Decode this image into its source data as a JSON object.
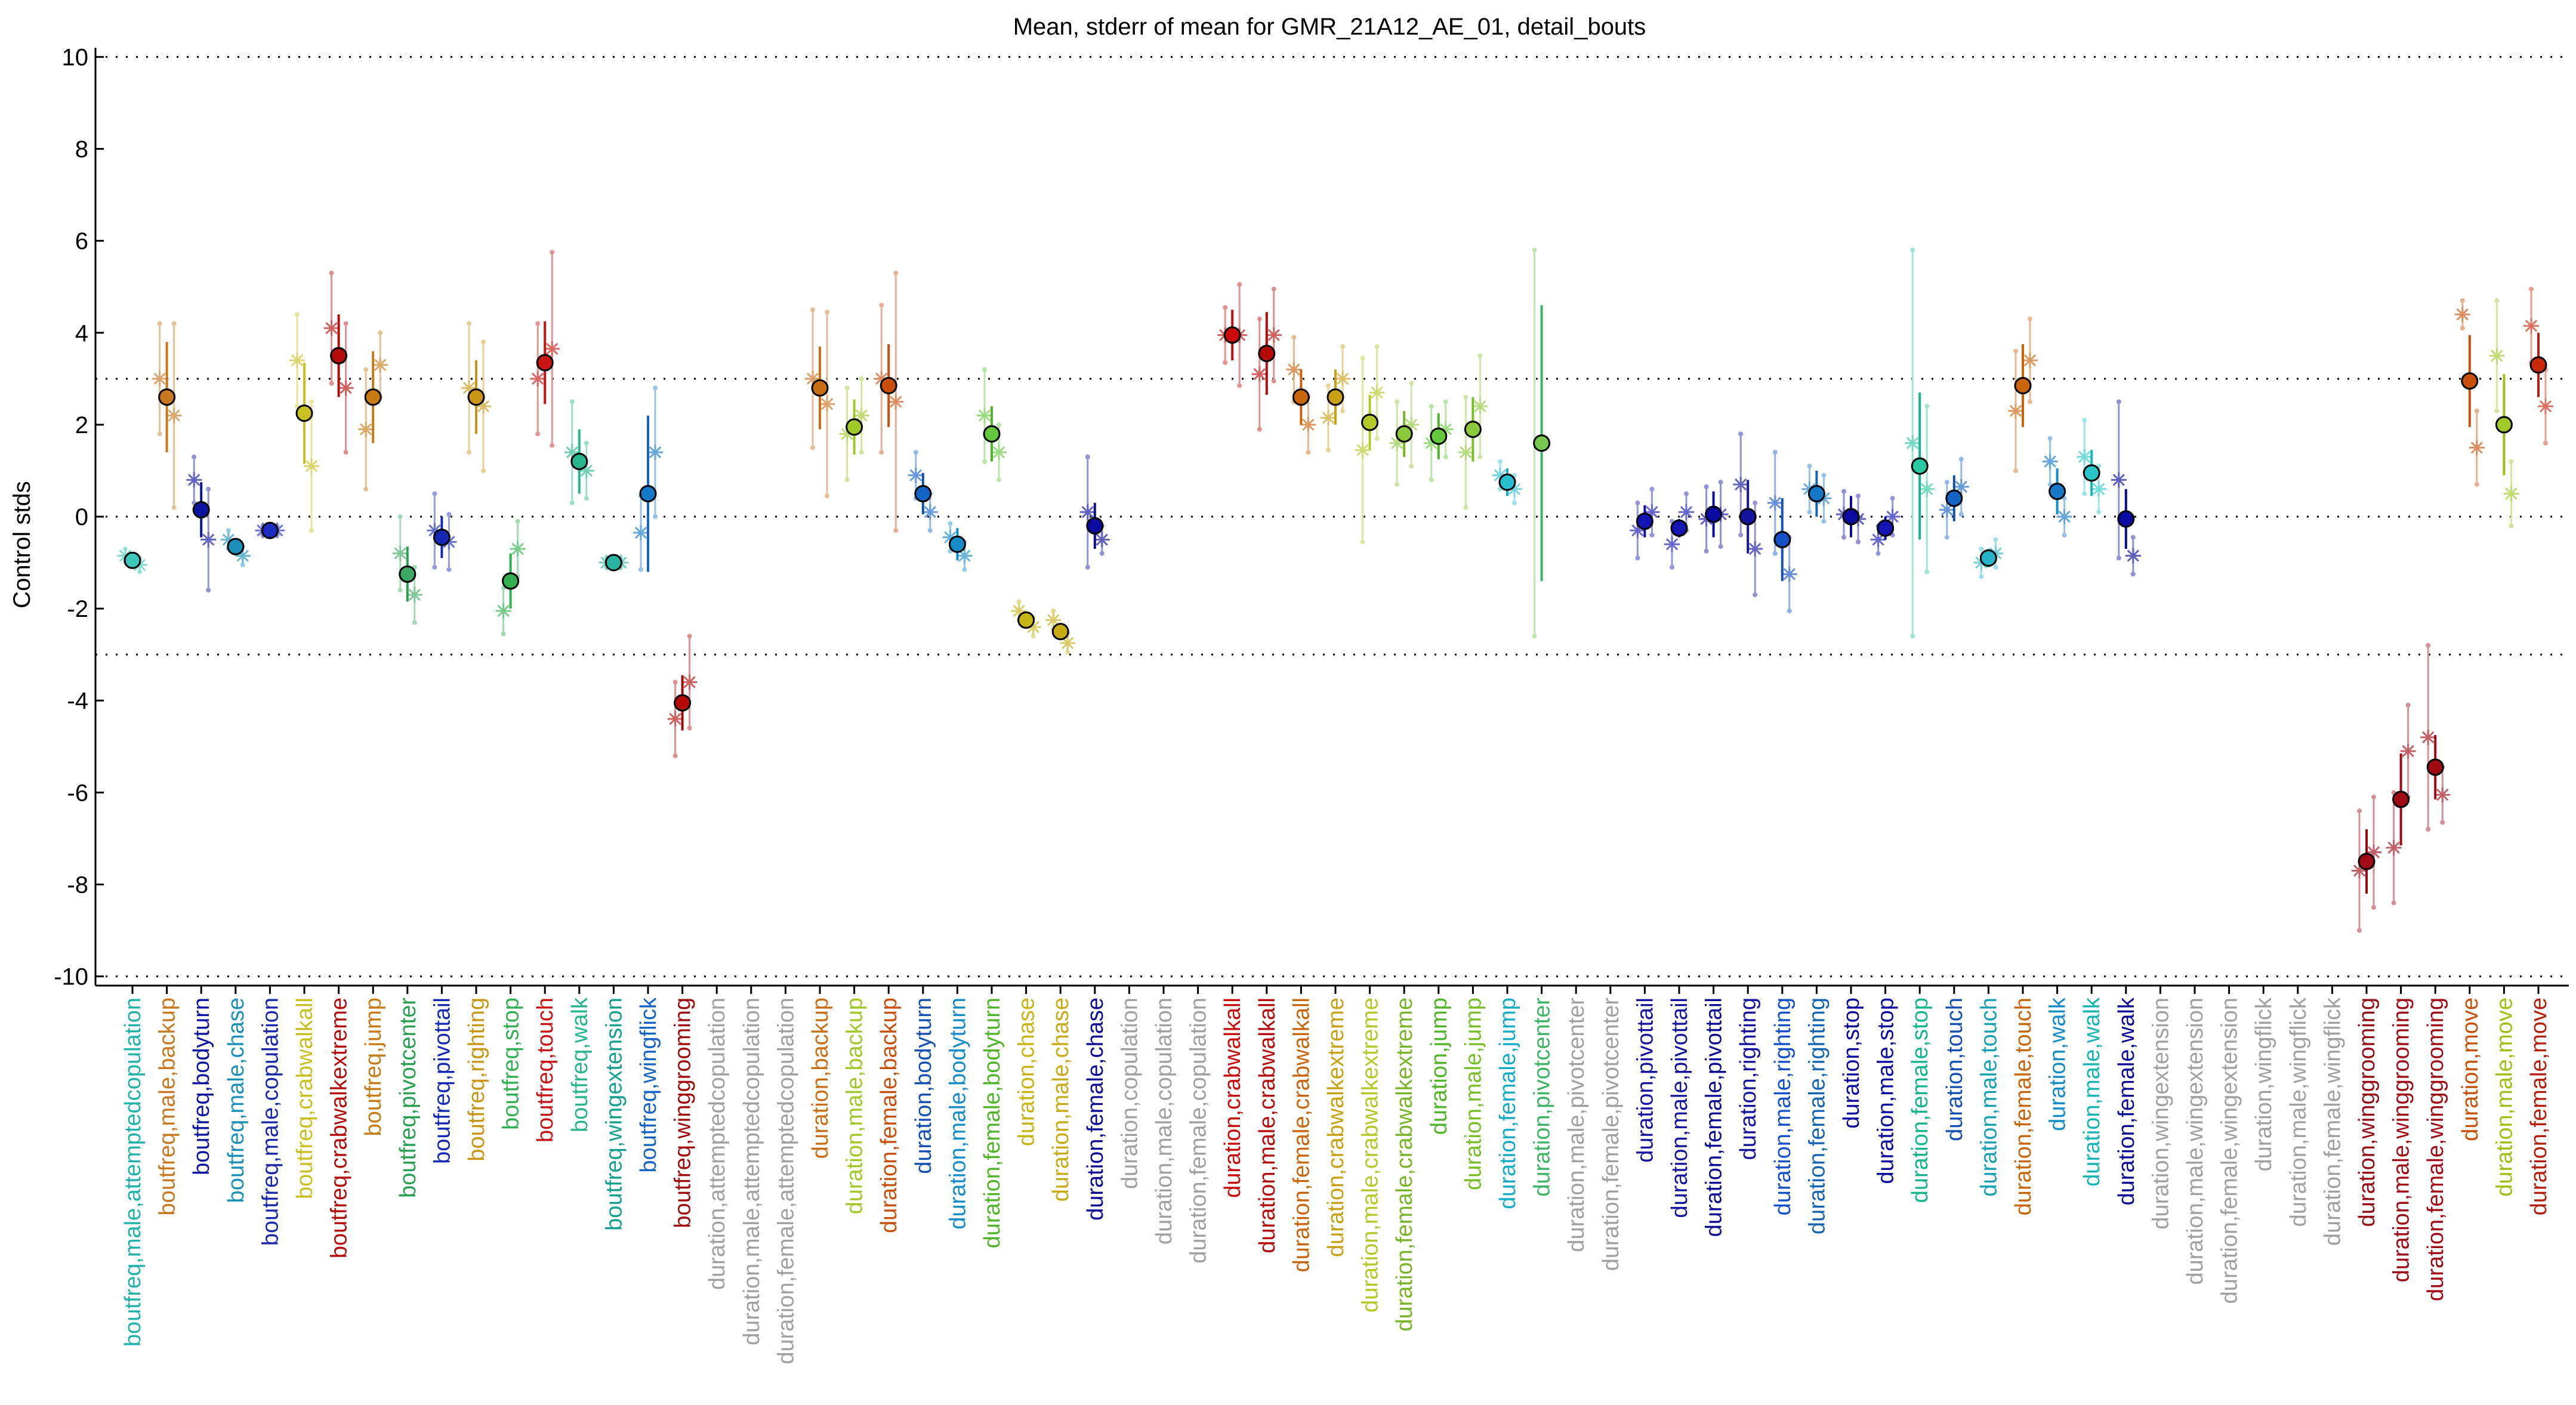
{
  "chart_data": {
    "type": "scatter",
    "title": "Mean, stderr of mean for GMR_21A12_AE_01, detail_bouts",
    "xlabel": "",
    "ylabel": "Control stds",
    "ylim": [
      -10.2,
      10.2
    ],
    "yticks": [
      -10,
      -8,
      -6,
      -4,
      -2,
      0,
      2,
      4,
      6,
      8,
      10
    ],
    "reference_lines": [
      10,
      3,
      0,
      -3,
      -10
    ],
    "grid": false,
    "categories": [
      {
        "label": "boutfreq,male,attemptedcopulation",
        "color": "#20b2aa",
        "mean": -0.95,
        "err": 0.1,
        "sides": [
          -0.85,
          -1.05
        ],
        "sides_err": [
          0.15,
          0.15
        ],
        "marker_color": "#3cc8b8"
      },
      {
        "label": "boutfreq,male,backup",
        "color": "#c8781e",
        "mean": 2.6,
        "err": 1.2,
        "sides": [
          3.0,
          2.2
        ],
        "sides_err": [
          1.2,
          2.0
        ],
        "marker_color": "#c8781e"
      },
      {
        "label": "boutfreq,bodyturn",
        "color": "#0a14a0",
        "mean": 0.15,
        "err": 0.6,
        "sides": [
          0.8,
          -0.5
        ],
        "sides_err": [
          0.5,
          1.1
        ],
        "marker_color": "#0a14a0"
      },
      {
        "label": "boutfreq,male,chase",
        "color": "#1a90b8",
        "mean": -0.65,
        "err": 0.1,
        "sides": [
          -0.5,
          -0.85
        ],
        "sides_err": [
          0.2,
          0.2
        ],
        "marker_color": "#1a90b8"
      },
      {
        "label": "boutfreq,male,copulation",
        "color": "#1828a8",
        "mean": -0.3,
        "err": 0.05,
        "sides": [
          -0.3,
          -0.3
        ],
        "sides_err": [
          0.1,
          0.1
        ],
        "marker_color": "#1c2cc0"
      },
      {
        "label": "boutfreq,crabwalkall",
        "color": "#c8c020",
        "mean": 2.25,
        "err": 1.1,
        "sides": [
          3.4,
          1.1
        ],
        "sides_err": [
          1.0,
          1.4
        ],
        "marker_color": "#c8c020"
      },
      {
        "label": "boutfreq,crabwalkextreme",
        "color": "#b40a0a",
        "mean": 3.5,
        "err": 0.9,
        "sides": [
          4.1,
          2.8
        ],
        "sides_err": [
          1.2,
          1.4
        ],
        "marker_color": "#b40a0a"
      },
      {
        "label": "boutfreq,jump",
        "color": "#c87a14",
        "mean": 2.6,
        "err": 1.0,
        "sides": [
          1.9,
          3.3
        ],
        "sides_err": [
          1.3,
          0.7
        ],
        "marker_color": "#c87a14"
      },
      {
        "label": "boutfreq,pivotcenter",
        "color": "#28a050",
        "mean": -1.25,
        "err": 0.6,
        "sides": [
          -0.8,
          -1.7
        ],
        "sides_err": [
          0.8,
          0.6
        ],
        "marker_color": "#3ca864"
      },
      {
        "label": "boutfreq,pivottail",
        "color": "#1428b4",
        "mean": -0.45,
        "err": 0.45,
        "sides": [
          -0.3,
          -0.55
        ],
        "sides_err": [
          0.8,
          0.6
        ],
        "marker_color": "#1428b4"
      },
      {
        "label": "boutfreq,righting",
        "color": "#c89614",
        "mean": 2.6,
        "err": 0.8,
        "sides": [
          2.8,
          2.4
        ],
        "sides_err": [
          1.4,
          1.4
        ],
        "marker_color": "#c89614"
      },
      {
        "label": "boutfreq,stop",
        "color": "#30b050",
        "mean": -1.4,
        "err": 0.6,
        "sides": [
          -2.05,
          -0.7
        ],
        "sides_err": [
          0.5,
          0.6
        ],
        "marker_color": "#30b050"
      },
      {
        "label": "boutfreq,touch",
        "color": "#c81414",
        "mean": 3.35,
        "err": 0.9,
        "sides": [
          3.0,
          3.65
        ],
        "sides_err": [
          1.2,
          2.1
        ],
        "marker_color": "#c81414"
      },
      {
        "label": "boutfreq,walk",
        "color": "#28b48c",
        "mean": 1.2,
        "err": 0.7,
        "sides": [
          1.4,
          1.0
        ],
        "sides_err": [
          1.1,
          0.6
        ],
        "marker_color": "#28b48c"
      },
      {
        "label": "boutfreq,wingextension",
        "color": "#14a08c",
        "mean": -1.0,
        "err": 0.05,
        "sides": [
          -1.0,
          -1.0
        ],
        "sides_err": [
          0.1,
          0.1
        ],
        "marker_color": "#28b4a0"
      },
      {
        "label": "boutfreq,wingflick",
        "color": "#1464c8",
        "mean": 0.5,
        "err": 1.7,
        "sides": [
          -0.35,
          1.4
        ],
        "sides_err": [
          0.8,
          1.4
        ],
        "marker_color": "#1478c8"
      },
      {
        "label": "boutfreq,winggrooming",
        "color": "#a00a0a",
        "mean": -4.05,
        "err": 0.6,
        "sides": [
          -4.4,
          -3.6
        ],
        "sides_err": [
          0.8,
          1.0
        ],
        "marker_color": "#b40a0a"
      },
      {
        "label": "duration,attemptedcopulation",
        "color": "#a0a0a0",
        "mean": null
      },
      {
        "label": "duration,male,attemptedcopulation",
        "color": "#a0a0a0",
        "mean": null
      },
      {
        "label": "duration,female,attemptedcopulation",
        "color": "#a0a0a0",
        "mean": null
      },
      {
        "label": "duration,backup",
        "color": "#c86e14",
        "mean": 2.8,
        "err": 0.9,
        "sides": [
          3.0,
          2.45
        ],
        "sides_err": [
          1.5,
          2.0
        ],
        "marker_color": "#c86e14"
      },
      {
        "label": "duration,male,backup",
        "color": "#a0c828",
        "mean": 1.95,
        "err": 0.6,
        "sides": [
          1.8,
          2.2
        ],
        "sides_err": [
          1.0,
          0.8
        ],
        "marker_color": "#a0c828"
      },
      {
        "label": "duration,female,backup",
        "color": "#c8500a",
        "mean": 2.85,
        "err": 0.9,
        "sides": [
          3.0,
          2.5
        ],
        "sides_err": [
          1.6,
          2.8
        ],
        "marker_color": "#c8500a"
      },
      {
        "label": "duration,bodyturn",
        "color": "#1450b4",
        "mean": 0.5,
        "err": 0.45,
        "sides": [
          0.9,
          0.1
        ],
        "sides_err": [
          0.5,
          0.4
        ],
        "marker_color": "#1464c8"
      },
      {
        "label": "duration,male,bodyturn",
        "color": "#148cc8",
        "mean": -0.6,
        "err": 0.35,
        "sides": [
          -0.45,
          -0.85
        ],
        "sides_err": [
          0.3,
          0.3
        ],
        "marker_color": "#148cc8"
      },
      {
        "label": "duration,female,bodyturn",
        "color": "#50b428",
        "mean": 1.8,
        "err": 0.6,
        "sides": [
          2.2,
          1.4
        ],
        "sides_err": [
          1.0,
          0.6
        ],
        "marker_color": "#64c83c"
      },
      {
        "label": "duration,chase",
        "color": "#c8b414",
        "mean": -2.25,
        "err": 0.1,
        "sides": [
          -2.05,
          -2.4
        ],
        "sides_err": [
          0.2,
          0.2
        ],
        "marker_color": "#c8b414"
      },
      {
        "label": "duration,male,chase",
        "color": "#c8aa14",
        "mean": -2.5,
        "err": 0.1,
        "sides": [
          -2.25,
          -2.75
        ],
        "sides_err": [
          0.2,
          0.2
        ],
        "marker_color": "#c8aa14"
      },
      {
        "label": "duration,female,chase",
        "color": "#0a0a96",
        "mean": -0.2,
        "err": 0.5,
        "sides": [
          0.1,
          -0.5
        ],
        "sides_err": [
          1.2,
          0.3
        ],
        "marker_color": "#0a0aa0"
      },
      {
        "label": "duration,copulation",
        "color": "#a0a0a0",
        "mean": null
      },
      {
        "label": "duration,male,copulation",
        "color": "#a0a0a0",
        "mean": null
      },
      {
        "label": "duration,female,copulation",
        "color": "#a0a0a0",
        "mean": null
      },
      {
        "label": "duration,crabwalkall",
        "color": "#c80a0a",
        "mean": 3.95,
        "err": 0.55,
        "sides": [
          3.95,
          3.95
        ],
        "sides_err": [
          0.6,
          1.1
        ],
        "marker_color": "#c80a0a"
      },
      {
        "label": "duration,male,crabwalkall",
        "color": "#b40a0a",
        "mean": 3.55,
        "err": 0.9,
        "sides": [
          3.1,
          3.95
        ],
        "sides_err": [
          1.2,
          1.0
        ],
        "marker_color": "#b40a0a"
      },
      {
        "label": "duration,female,crabwalkall",
        "color": "#c8640a",
        "mean": 2.6,
        "err": 0.6,
        "sides": [
          3.2,
          2.0
        ],
        "sides_err": [
          0.7,
          0.6
        ],
        "marker_color": "#c8640a"
      },
      {
        "label": "duration,crabwalkextreme",
        "color": "#c8a014",
        "mean": 2.6,
        "err": 0.6,
        "sides": [
          2.15,
          3.0
        ],
        "sides_err": [
          0.7,
          0.7
        ],
        "marker_color": "#c8a014"
      },
      {
        "label": "duration,male,crabwalkextreme",
        "color": "#b4c828",
        "mean": 2.05,
        "err": 0.6,
        "sides": [
          1.45,
          2.7
        ],
        "sides_err": [
          2.0,
          1.0
        ],
        "marker_color": "#b4c828"
      },
      {
        "label": "duration,female,crabwalkextreme",
        "color": "#78b428",
        "mean": 1.8,
        "err": 0.5,
        "sides": [
          1.6,
          2.0
        ],
        "sides_err": [
          0.9,
          0.9
        ],
        "marker_color": "#8cc83c"
      },
      {
        "label": "duration,jump",
        "color": "#50b428",
        "mean": 1.75,
        "err": 0.5,
        "sides": [
          1.6,
          1.9
        ],
        "sides_err": [
          0.8,
          0.6
        ],
        "marker_color": "#64c83c"
      },
      {
        "label": "duration,male,jump",
        "color": "#78be28",
        "mean": 1.9,
        "err": 0.7,
        "sides": [
          1.4,
          2.4
        ],
        "sides_err": [
          1.2,
          1.1
        ],
        "marker_color": "#8cc83c"
      },
      {
        "label": "duration,female,jump",
        "color": "#14aac8",
        "mean": 0.75,
        "err": 0.3,
        "sides": [
          0.9,
          0.6
        ],
        "sides_err": [
          0.3,
          0.3
        ],
        "marker_color": "#28bed2"
      },
      {
        "label": "duration,pivotcenter",
        "color": "#3cb464",
        "mean": 1.6,
        "err": 3.0,
        "sides": [
          null,
          null
        ],
        "sides_err": [
          4.2,
          0
        ],
        "marker_color": "#78c850"
      },
      {
        "label": "duration,male,pivotcenter",
        "color": "#a0a0a0",
        "mean": null
      },
      {
        "label": "duration,female,pivotcenter",
        "color": "#a0a0a0",
        "mean": null
      },
      {
        "label": "duration,pivottail",
        "color": "#1414a0",
        "mean": -0.1,
        "err": 0.35,
        "sides": [
          -0.3,
          0.1
        ],
        "sides_err": [
          0.6,
          0.5
        ],
        "marker_color": "#1414b4"
      },
      {
        "label": "duration,male,pivottail",
        "color": "#1414a0",
        "mean": -0.25,
        "err": 0.2,
        "sides": [
          -0.6,
          0.1
        ],
        "sides_err": [
          0.5,
          0.4
        ],
        "marker_color": "#1414b4"
      },
      {
        "label": "duration,female,pivottail",
        "color": "#0a0a96",
        "mean": 0.05,
        "err": 0.5,
        "sides": [
          -0.05,
          0.05
        ],
        "sides_err": [
          0.7,
          0.7
        ],
        "marker_color": "#0a0aa0"
      },
      {
        "label": "duration,righting",
        "color": "#1414a0",
        "mean": 0.0,
        "err": 0.8,
        "sides": [
          0.7,
          -0.7
        ],
        "sides_err": [
          1.1,
          1.0
        ],
        "marker_color": "#1414a0"
      },
      {
        "label": "duration,male,righting",
        "color": "#1450c8",
        "mean": -0.5,
        "err": 0.9,
        "sides": [
          0.3,
          -1.25
        ],
        "sides_err": [
          1.1,
          0.8
        ],
        "marker_color": "#1450c8"
      },
      {
        "label": "duration,female,righting",
        "color": "#1464b4",
        "mean": 0.5,
        "err": 0.5,
        "sides": [
          0.6,
          0.4
        ],
        "sides_err": [
          0.5,
          0.5
        ],
        "marker_color": "#1478c8"
      },
      {
        "label": "duration,stop",
        "color": "#0a0aa0",
        "mean": 0.0,
        "err": 0.45,
        "sides": [
          0.05,
          -0.05
        ],
        "sides_err": [
          0.5,
          0.5
        ],
        "marker_color": "#0a0aa0"
      },
      {
        "label": "duration,male,stop",
        "color": "#0a0aa0",
        "mean": -0.25,
        "err": 0.25,
        "sides": [
          -0.5,
          0.0
        ],
        "sides_err": [
          0.3,
          0.4
        ],
        "marker_color": "#1414b4"
      },
      {
        "label": "duration,female,stop",
        "color": "#14b48c",
        "mean": 1.1,
        "err": 1.6,
        "sides": [
          1.6,
          0.6
        ],
        "sides_err": [
          4.2,
          1.8
        ],
        "marker_color": "#28c8a0"
      },
      {
        "label": "duration,touch",
        "color": "#1450b4",
        "mean": 0.4,
        "err": 0.5,
        "sides": [
          0.15,
          0.65
        ],
        "sides_err": [
          0.6,
          0.6
        ],
        "marker_color": "#1464c8"
      },
      {
        "label": "duration,male,touch",
        "color": "#14a0b4",
        "mean": -0.9,
        "err": 0.2,
        "sides": [
          -1.0,
          -0.8
        ],
        "sides_err": [
          0.3,
          0.3
        ],
        "marker_color": "#28b4c8"
      },
      {
        "label": "duration,female,touch",
        "color": "#c8640a",
        "mean": 2.85,
        "err": 0.9,
        "sides": [
          2.3,
          3.4
        ],
        "sides_err": [
          1.3,
          0.9
        ],
        "marker_color": "#c8640a"
      },
      {
        "label": "duration,walk",
        "color": "#148cc8",
        "mean": 0.55,
        "err": 0.5,
        "sides": [
          1.2,
          0.0
        ],
        "sides_err": [
          0.5,
          0.4
        ],
        "marker_color": "#1478c8"
      },
      {
        "label": "duration,male,walk",
        "color": "#14b4b4",
        "mean": 0.95,
        "err": 0.5,
        "sides": [
          1.3,
          0.6
        ],
        "sides_err": [
          0.8,
          0.5
        ],
        "marker_color": "#28c8c8"
      },
      {
        "label": "duration,female,walk",
        "color": "#0a0a96",
        "mean": -0.05,
        "err": 0.65,
        "sides": [
          0.8,
          -0.85
        ],
        "sides_err": [
          1.7,
          0.4
        ],
        "marker_color": "#0a0aa0"
      },
      {
        "label": "duration,wingextension",
        "color": "#a0a0a0",
        "mean": null
      },
      {
        "label": "duration,male,wingextension",
        "color": "#a0a0a0",
        "mean": null
      },
      {
        "label": "duration,female,wingextension",
        "color": "#a0a0a0",
        "mean": null
      },
      {
        "label": "duration,wingflick",
        "color": "#a0a0a0",
        "mean": null
      },
      {
        "label": "duration,male,wingflick",
        "color": "#a0a0a0",
        "mean": null
      },
      {
        "label": "duration,female,wingflick",
        "color": "#a0a0a0",
        "mean": null
      },
      {
        "label": "duration,winggrooming",
        "color": "#960a14",
        "mean": -7.5,
        "err": 0.7,
        "sides": [
          -7.7,
          -7.3
        ],
        "sides_err": [
          1.3,
          1.2
        ],
        "marker_color": "#a00a14"
      },
      {
        "label": "duration,male,winggrooming",
        "color": "#a00a14",
        "mean": -6.15,
        "err": 1.0,
        "sides": [
          -7.2,
          -5.1
        ],
        "sides_err": [
          1.2,
          1.0
        ],
        "marker_color": "#a00a14"
      },
      {
        "label": "duration,female,winggrooming",
        "color": "#a00a14",
        "mean": -5.45,
        "err": 0.7,
        "sides": [
          -4.8,
          -6.05
        ],
        "sides_err": [
          2.0,
          0.6
        ],
        "marker_color": "#a00a14"
      },
      {
        "label": "duration,move",
        "color": "#c8500a",
        "mean": 2.95,
        "err": 1.0,
        "sides": [
          4.4,
          1.5
        ],
        "sides_err": [
          0.3,
          0.8
        ],
        "marker_color": "#c8500a"
      },
      {
        "label": "duration,male,move",
        "color": "#a0be14",
        "mean": 2.0,
        "err": 1.1,
        "sides": [
          3.5,
          0.5
        ],
        "sides_err": [
          1.2,
          0.7
        ],
        "marker_color": "#a0c828"
      },
      {
        "label": "duration,female,move",
        "color": "#b41e0a",
        "mean": 3.3,
        "err": 0.7,
        "sides": [
          4.15,
          2.4
        ],
        "sides_err": [
          0.8,
          0.8
        ],
        "marker_color": "#c8280a"
      }
    ]
  }
}
